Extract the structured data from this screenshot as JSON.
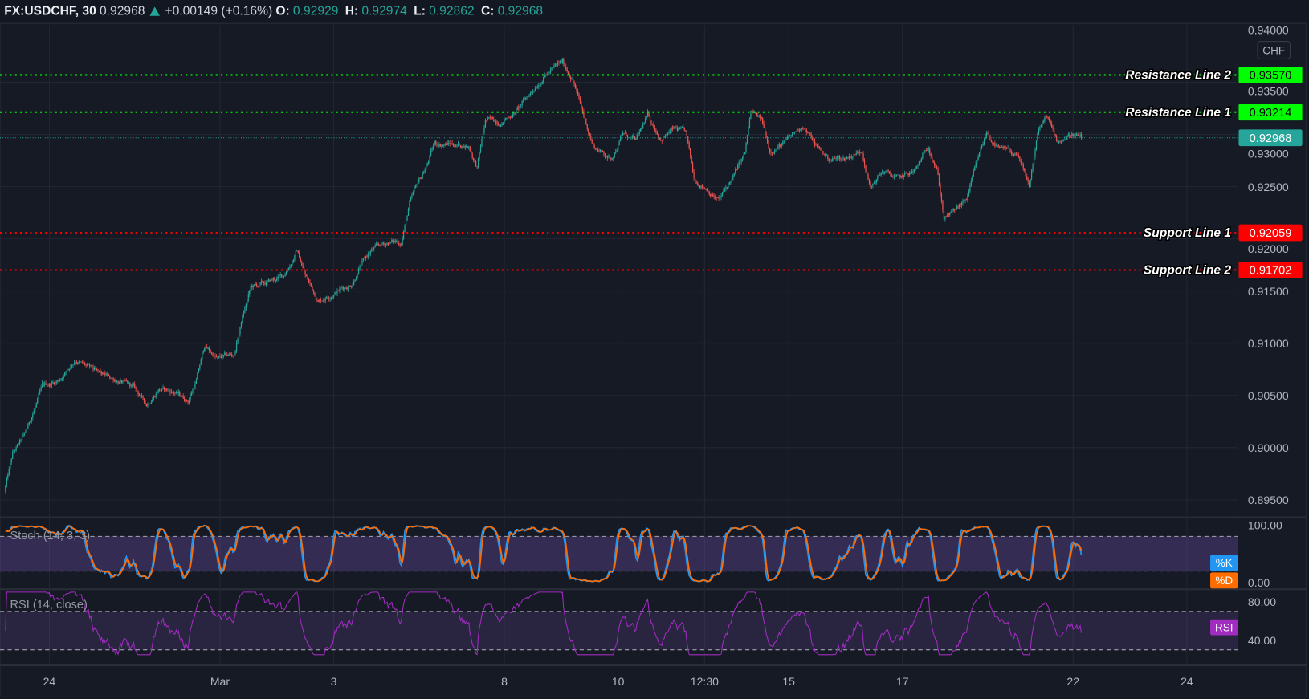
{
  "header": {
    "symbol": "FX:USDCHF, 30",
    "last": "0.92968",
    "direction_icon": "triangle-up-icon",
    "change": "+0.00149 (+0.16%)",
    "o_label": "O:",
    "o": "0.92929",
    "h_label": "H:",
    "h": "0.92974",
    "l_label": "L:",
    "l": "0.92862",
    "c_label": "C:",
    "c": "0.92968"
  },
  "currency_button": "CHF",
  "colors": {
    "background": "#161a25",
    "up": "#26a69a",
    "down": "#ef5350",
    "resistance": "#00ff00",
    "support": "#ff0000",
    "last_price": "#26a69a",
    "stoch_k": "#2196f3",
    "stoch_d": "#ff6d00",
    "rsi": "#a12cc0",
    "band_fill": "#7e57c2"
  },
  "chart_data": {
    "type": "candlestick",
    "symbol": "FX:USDCHF",
    "interval": "30",
    "grid": true,
    "price_axis": {
      "range": [
        0.8943,
        0.9405
      ],
      "ticks": [
        "0.94000",
        "0.93500",
        "0.93000",
        "0.92500",
        "0.92000",
        "0.91500",
        "0.91000",
        "0.90500",
        "0.90000",
        "0.89500"
      ]
    },
    "x_ticks": [
      {
        "label": "24",
        "t": "02-24 00:00"
      },
      {
        "label": "Mar",
        "t": "03-01 00:00"
      },
      {
        "label": "3",
        "t": "03-03 00:00"
      },
      {
        "label": "8",
        "t": "03-08 00:00"
      },
      {
        "label": "10",
        "t": "03-10 00:00"
      },
      {
        "label": "12:30",
        "t": "03-11 12:30"
      },
      {
        "label": "15",
        "t": "03-15 00:00"
      },
      {
        "label": "17",
        "t": "03-17 00:00"
      },
      {
        "label": "22",
        "t": "03-22 00:00"
      },
      {
        "label": "24",
        "t": "03-24 00:00"
      }
    ],
    "close_path": [
      [
        "02-23 05:00",
        0.8958
      ],
      [
        "02-23 08:30",
        0.8993
      ],
      [
        "02-23 14:00",
        0.9013
      ],
      [
        "02-23 17:00",
        0.9033
      ],
      [
        "02-23 21:00",
        0.9057
      ],
      [
        "02-24 04:00",
        0.9065
      ],
      [
        "02-24 11:00",
        0.9085
      ],
      [
        "02-24 16:00",
        0.9077
      ],
      [
        "02-24 21:30",
        0.9069
      ],
      [
        "02-25 04:30",
        0.9065
      ],
      [
        "02-25 11:30",
        0.9057
      ],
      [
        "02-25 17:00",
        0.9041
      ],
      [
        "02-25 22:00",
        0.9057
      ],
      [
        "02-26 05:00",
        0.9053
      ],
      [
        "02-26 10:30",
        0.9045
      ],
      [
        "02-26 14:00",
        0.9065
      ],
      [
        "02-26 17:30",
        0.9097
      ],
      [
        "02-26 23:00",
        0.9085
      ],
      [
        "03-01 06:00",
        0.9089
      ],
      [
        "03-01 09:30",
        0.9125
      ],
      [
        "03-01 13:00",
        0.9153
      ],
      [
        "03-01 20:00",
        0.9157
      ],
      [
        "03-02 03:00",
        0.9165
      ],
      [
        "03-02 08:30",
        0.9189
      ],
      [
        "03-02 12:00",
        0.9165
      ],
      [
        "03-02 17:30",
        0.9141
      ],
      [
        "03-03 00:30",
        0.915
      ],
      [
        "03-03 07:30",
        0.9157
      ],
      [
        "03-03 11:00",
        0.9174
      ],
      [
        "03-03 16:00",
        0.9189
      ],
      [
        "03-03 23:30",
        0.9197
      ],
      [
        "03-04 04:30",
        0.9197
      ],
      [
        "03-04 08:00",
        0.9233
      ],
      [
        "03-04 11:30",
        0.9253
      ],
      [
        "03-04 15:00",
        0.9269
      ],
      [
        "03-04 18:30",
        0.9291
      ],
      [
        "03-05 01:30",
        0.9291
      ],
      [
        "03-05 09:00",
        0.9289
      ],
      [
        "03-05 12:30",
        0.9269
      ],
      [
        "03-05 16:00",
        0.9313
      ],
      [
        "03-05 23:00",
        0.9313
      ],
      [
        "03-08 06:00",
        0.9325
      ],
      [
        "03-08 11:30",
        0.9341
      ],
      [
        "03-08 16:30",
        0.9357
      ],
      [
        "03-08 22:00",
        0.9365
      ],
      [
        "03-09 00:30",
        0.9369
      ],
      [
        "03-09 05:00",
        0.9353
      ],
      [
        "03-09 08:30",
        0.9325
      ],
      [
        "03-09 13:30",
        0.9289
      ],
      [
        "03-09 21:00",
        0.9277
      ],
      [
        "03-10 02:00",
        0.9301
      ],
      [
        "03-10 07:30",
        0.9293
      ],
      [
        "03-10 12:30",
        0.9317
      ],
      [
        "03-10 18:00",
        0.9297
      ],
      [
        "03-10 23:30",
        0.9305
      ],
      [
        "03-11 04:30",
        0.9301
      ],
      [
        "03-11 08:00",
        0.9257
      ],
      [
        "03-11 13:30",
        0.9249
      ],
      [
        "03-11 18:30",
        0.9237
      ],
      [
        "03-12 00:00",
        0.9257
      ],
      [
        "03-12 05:30",
        0.9281
      ],
      [
        "03-12 08:00",
        0.9321
      ],
      [
        "03-12 12:30",
        0.9313
      ],
      [
        "03-12 16:00",
        0.9285
      ],
      [
        "03-12 23:00",
        0.9293
      ],
      [
        "03-15 06:00",
        0.9309
      ],
      [
        "03-15 11:30",
        0.9289
      ],
      [
        "03-15 16:30",
        0.9277
      ],
      [
        "03-15 23:30",
        0.9277
      ],
      [
        "03-16 07:00",
        0.9285
      ],
      [
        "03-16 10:30",
        0.9249
      ],
      [
        "03-16 15:30",
        0.9265
      ],
      [
        "03-16 22:30",
        0.9257
      ],
      [
        "03-17 05:30",
        0.9265
      ],
      [
        "03-17 11:00",
        0.9289
      ],
      [
        "03-17 14:30",
        0.9269
      ],
      [
        "03-17 17:30",
        0.9221
      ],
      [
        "03-17 21:30",
        0.9225
      ],
      [
        "03-18 03:00",
        0.9237
      ],
      [
        "03-18 06:30",
        0.9265
      ],
      [
        "03-18 11:30",
        0.9301
      ],
      [
        "03-18 17:00",
        0.9285
      ],
      [
        "03-19 00:00",
        0.9281
      ],
      [
        "03-19 05:30",
        0.9249
      ],
      [
        "03-19 09:00",
        0.9301
      ],
      [
        "03-19 12:30",
        0.9317
      ],
      [
        "03-19 17:30",
        0.9293
      ],
      [
        "03-19 23:00",
        0.9301
      ],
      [
        "03-22 03:30",
        0.92968
      ]
    ],
    "last_price": {
      "value": 0.92968,
      "label": "0.92968"
    },
    "levels": [
      {
        "name": "Resistance Line 2",
        "value": 0.9357,
        "label": "0.93570",
        "kind": "resistance"
      },
      {
        "name": "Resistance Line 1",
        "value": 0.93214,
        "label": "0.93214",
        "kind": "resistance"
      },
      {
        "name": "Support Line 1",
        "value": 0.92059,
        "label": "0.92059",
        "kind": "support"
      },
      {
        "name": "Support Line 2",
        "value": 0.91702,
        "label": "0.91702",
        "kind": "support"
      }
    ],
    "indicators": [
      {
        "title": "Stoch (14, 3, 3)",
        "range": [
          0,
          100
        ],
        "ticks": [
          "100.00",
          "0.00"
        ],
        "bands": [
          20,
          80
        ],
        "lines": [
          {
            "name": "%K"
          },
          {
            "name": "%D"
          }
        ]
      },
      {
        "title": "RSI (14, close)",
        "range": [
          40,
          80
        ],
        "ticks": [
          "80.00",
          "40.00"
        ],
        "bands": [
          30,
          70
        ],
        "lines": [
          {
            "name": "RSI"
          }
        ]
      }
    ]
  }
}
